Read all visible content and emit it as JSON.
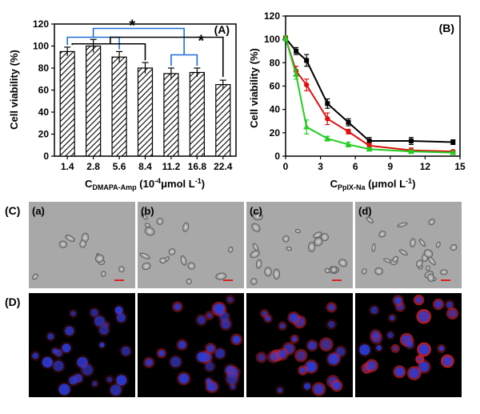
{
  "chart_data": [
    {
      "type": "bar",
      "panel_label": "(A)",
      "ylabel": "Cell viability (%)",
      "xlabel_main": "C",
      "xlabel_sub": "DMAPA-Amp",
      "xlabel_rest": " (10",
      "xlabel_sup": "-4",
      "xlabel_end": "μmol L",
      "xlabel_sup2": "-1",
      "xlabel_close": ")",
      "categories": [
        "1.4",
        "2.8",
        "5.6",
        "8.4",
        "11.2",
        "16.8",
        "22.4"
      ],
      "values": [
        95,
        100,
        90,
        80,
        75,
        76,
        65
      ],
      "errors": [
        4,
        6,
        5,
        5,
        5,
        4,
        4
      ],
      "ylim": [
        0,
        120
      ],
      "yticks": [
        "0",
        "20",
        "40",
        "60",
        "80",
        "100",
        "120"
      ],
      "significance": [
        "*",
        "*"
      ],
      "bar_fill": "hatched",
      "bracket_colors": [
        "#1e6fd9",
        "#000000"
      ]
    },
    {
      "type": "line",
      "panel_label": "(B)",
      "ylabel": "Cell viability (%)",
      "xlabel_main": "C",
      "xlabel_sub": "PpIX-Na",
      "xlabel_rest": " (μmol L",
      "xlabel_sup": "-1",
      "xlabel_close": ")",
      "xlim": [
        0,
        15
      ],
      "ylim": [
        0,
        120
      ],
      "xticks": [
        "0",
        "3",
        "6",
        "9",
        "12",
        "15"
      ],
      "yticks": [
        "0",
        "20",
        "40",
        "60",
        "80",
        "100",
        "120"
      ],
      "series": [
        {
          "color": "#000000",
          "marker": "square",
          "x": [
            0,
            0.9,
            1.8,
            3.6,
            5.4,
            7.2,
            10.8,
            14.4
          ],
          "y": [
            101,
            90,
            82,
            45,
            29,
            13,
            13,
            12
          ],
          "err": [
            2,
            3,
            5,
            4,
            3,
            3,
            3,
            2
          ]
        },
        {
          "color": "#e01010",
          "marker": "circle",
          "x": [
            0,
            0.9,
            1.8,
            3.6,
            5.4,
            7.2,
            10.8,
            14.4
          ],
          "y": [
            101,
            73,
            61,
            32,
            21,
            9,
            5,
            4
          ],
          "err": [
            2,
            4,
            5,
            5,
            2,
            2,
            2,
            1
          ]
        },
        {
          "color": "#22cc22",
          "marker": "triangle",
          "x": [
            0,
            0.9,
            1.8,
            3.6,
            5.4,
            7.2,
            10.8,
            14.4
          ],
          "y": [
            101,
            70,
            25,
            15,
            10,
            6,
            4,
            3
          ],
          "err": [
            2,
            4,
            6,
            2,
            2,
            1,
            1,
            1
          ]
        }
      ]
    }
  ],
  "micrographs": {
    "row_c_label": "(C)",
    "row_d_label": "(D)",
    "panels": [
      {
        "label": "(a)"
      },
      {
        "label": "(b)"
      },
      {
        "label": "(c)"
      },
      {
        "label": "(d)"
      }
    ],
    "fluorescence_colors": {
      "nucleus": "#2a3cd8",
      "ppix": "#d8202a",
      "background": "#000000"
    },
    "red_intensity": [
      0.05,
      0.45,
      0.75,
      1.0
    ],
    "brightfield_color": "#a8a8a8"
  }
}
